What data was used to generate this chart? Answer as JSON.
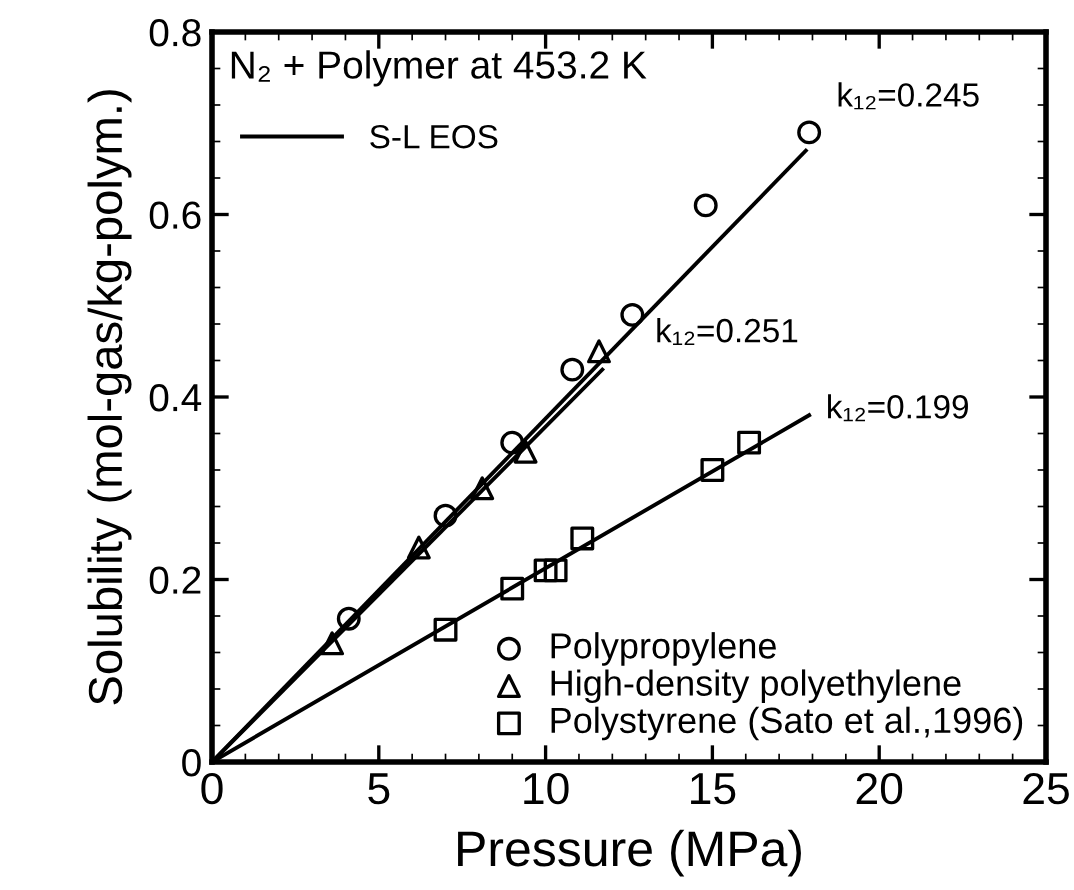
{
  "chart_data": {
    "type": "scatter",
    "title": "N₂ + Polymer at 453.2 K",
    "xlabel": "Pressure (MPa)",
    "ylabel": "Solubility (mol-gas/kg-polym.)",
    "xlim": [
      0,
      25
    ],
    "xticks": [
      0,
      5,
      10,
      15,
      20,
      25
    ],
    "ylim": [
      0,
      0.8
    ],
    "yticks": [
      0,
      0.2,
      0.4,
      0.6,
      0.8
    ],
    "grid": false,
    "legend": "bottom right",
    "series": [
      {
        "name": "Polypropylene",
        "marker": "circle",
        "color": "#000000",
        "x": [
          4.1,
          7,
          9,
          10.8,
          12.6,
          14.8,
          17.9
        ],
        "values": [
          0.157,
          0.27,
          0.35,
          0.43,
          0.49,
          0.61,
          0.69
        ]
      },
      {
        "name": "High-density polyethylene",
        "marker": "triangle",
        "color": "#000000",
        "x": [
          3.6,
          6.2,
          8.1,
          9.4,
          11.6
        ],
        "values": [
          0.13,
          0.235,
          0.3,
          0.34,
          0.45
        ]
      },
      {
        "name": "Polystyrene (Sato et al.,1996)",
        "marker": "square",
        "color": "#000000",
        "x": [
          7,
          9,
          10,
          10.3,
          11.1,
          15,
          16.1
        ],
        "values": [
          0.145,
          0.19,
          0.21,
          0.21,
          0.245,
          0.32,
          0.35
        ]
      },
      {
        "name": "S-L EOS",
        "type": "line",
        "line_style": "solid",
        "color": "#000000",
        "x": [
          0,
          17.8
        ],
        "values": [
          0,
          0.67
        ]
      },
      {
        "type": "line",
        "line_style": "solid",
        "color": "#000000",
        "x": [
          0,
          11.7
        ],
        "values": [
          0,
          0.43
        ]
      },
      {
        "type": "line",
        "line_style": "solid",
        "color": "#000000",
        "x": [
          0,
          17.9
        ],
        "values": [
          0,
          0.38
        ]
      }
    ],
    "annotations": [
      {
        "text": "k₁₂=0.245",
        "x": 17.8,
        "y": 0.67
      },
      {
        "text": "k₁₂=0.251",
        "x": 11.7,
        "y": 0.43
      },
      {
        "text": "k₁₂=0.199",
        "x": 17.9,
        "y": 0.38
      }
    ]
  }
}
